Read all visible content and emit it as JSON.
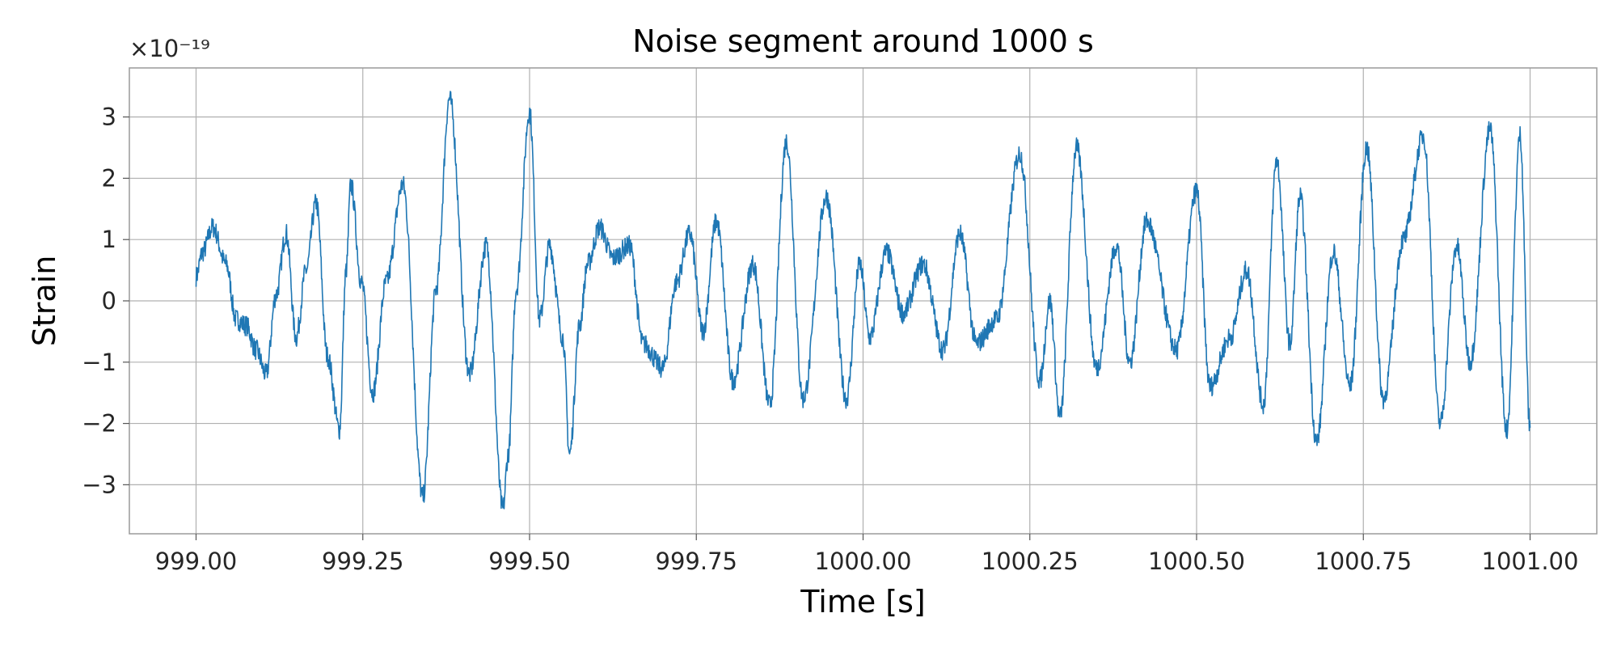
{
  "chart_data": {
    "type": "line",
    "title": "Noise segment around 1000 s",
    "xlabel": "Time [s]",
    "ylabel": "Strain",
    "y_offset_label": "×10⁻¹⁹",
    "xlim": [
      998.9,
      1001.1
    ],
    "ylim": [
      -3.8,
      3.8
    ],
    "x_ticks": [
      999.0,
      999.25,
      999.5,
      999.75,
      1000.0,
      1000.25,
      1000.5,
      1000.75,
      1001.0
    ],
    "x_tick_labels": [
      "999.00",
      "999.25",
      "999.50",
      "999.75",
      "1000.00",
      "1000.25",
      "1000.50",
      "1000.75",
      "1001.00"
    ],
    "y_ticks": [
      -3,
      -2,
      -1,
      0,
      1,
      2,
      3
    ],
    "y_tick_labels": [
      "−3",
      "−2",
      "−1",
      "0",
      "1",
      "2",
      "3"
    ],
    "grid": true,
    "line_color": "#1f77b4",
    "series": [
      {
        "x": [
          999.0,
          999.01,
          999.025,
          999.045,
          999.06,
          999.075,
          999.09,
          999.105,
          999.12,
          999.135,
          999.15,
          999.165,
          999.18,
          999.197,
          999.215,
          999.225,
          999.232,
          999.248,
          999.265,
          999.285,
          999.31,
          999.34,
          999.36,
          999.38,
          999.41,
          999.435,
          999.46,
          999.468,
          999.48,
          999.5,
          999.515,
          999.53,
          999.55,
          999.56,
          999.575,
          999.587,
          999.605,
          999.625,
          999.65,
          999.67,
          999.7,
          999.72,
          999.74,
          999.76,
          999.78,
          999.805,
          999.835,
          999.86,
          999.885,
          999.91,
          999.945,
          999.975,
          999.995,
          1000.01,
          1000.035,
          1000.06,
          1000.09,
          1000.12,
          1000.145,
          1000.17,
          1000.2,
          1000.235,
          1000.265,
          1000.28,
          1000.295,
          1000.32,
          1000.35,
          1000.38,
          1000.4,
          1000.425,
          1000.47,
          1000.5,
          1000.52,
          1000.55,
          1000.575,
          1000.6,
          1000.62,
          1000.64,
          1000.655,
          1000.68,
          1000.705,
          1000.73,
          1000.755,
          1000.78,
          1000.81,
          1000.84,
          1000.865,
          1000.89,
          1000.91,
          1000.94,
          1000.965,
          1000.985,
          1001.0
        ],
        "y": [
          0.4,
          0.8,
          1.2,
          0.6,
          -0.3,
          -0.4,
          -0.8,
          -1.2,
          0.1,
          1.1,
          -0.6,
          0.5,
          1.6,
          -0.9,
          -2.1,
          0.5,
          1.9,
          0.3,
          -1.5,
          0.3,
          1.9,
          -3.2,
          0.2,
          3.3,
          -1.2,
          0.9,
          -3.4,
          -2.5,
          0.2,
          3.1,
          -0.3,
          0.9,
          -0.6,
          -2.5,
          -0.4,
          0.6,
          1.2,
          0.7,
          0.9,
          -0.7,
          -1.1,
          0.3,
          1.1,
          -0.5,
          1.3,
          -1.3,
          0.6,
          -1.7,
          2.6,
          -1.6,
          1.7,
          -1.6,
          0.6,
          -0.6,
          0.8,
          -0.2,
          0.6,
          -0.8,
          1.1,
          -0.7,
          -0.3,
          2.4,
          -1.3,
          0.0,
          -1.9,
          2.5,
          -1.1,
          0.9,
          -1.0,
          1.3,
          -0.8,
          1.8,
          -1.4,
          -0.6,
          0.5,
          -1.7,
          2.3,
          -0.7,
          1.7,
          -2.3,
          0.8,
          -1.4,
          2.5,
          -1.6,
          1.0,
          2.7,
          -2.0,
          0.9,
          -1.0,
          2.8,
          -2.1,
          2.7,
          -2.1
        ]
      }
    ]
  }
}
